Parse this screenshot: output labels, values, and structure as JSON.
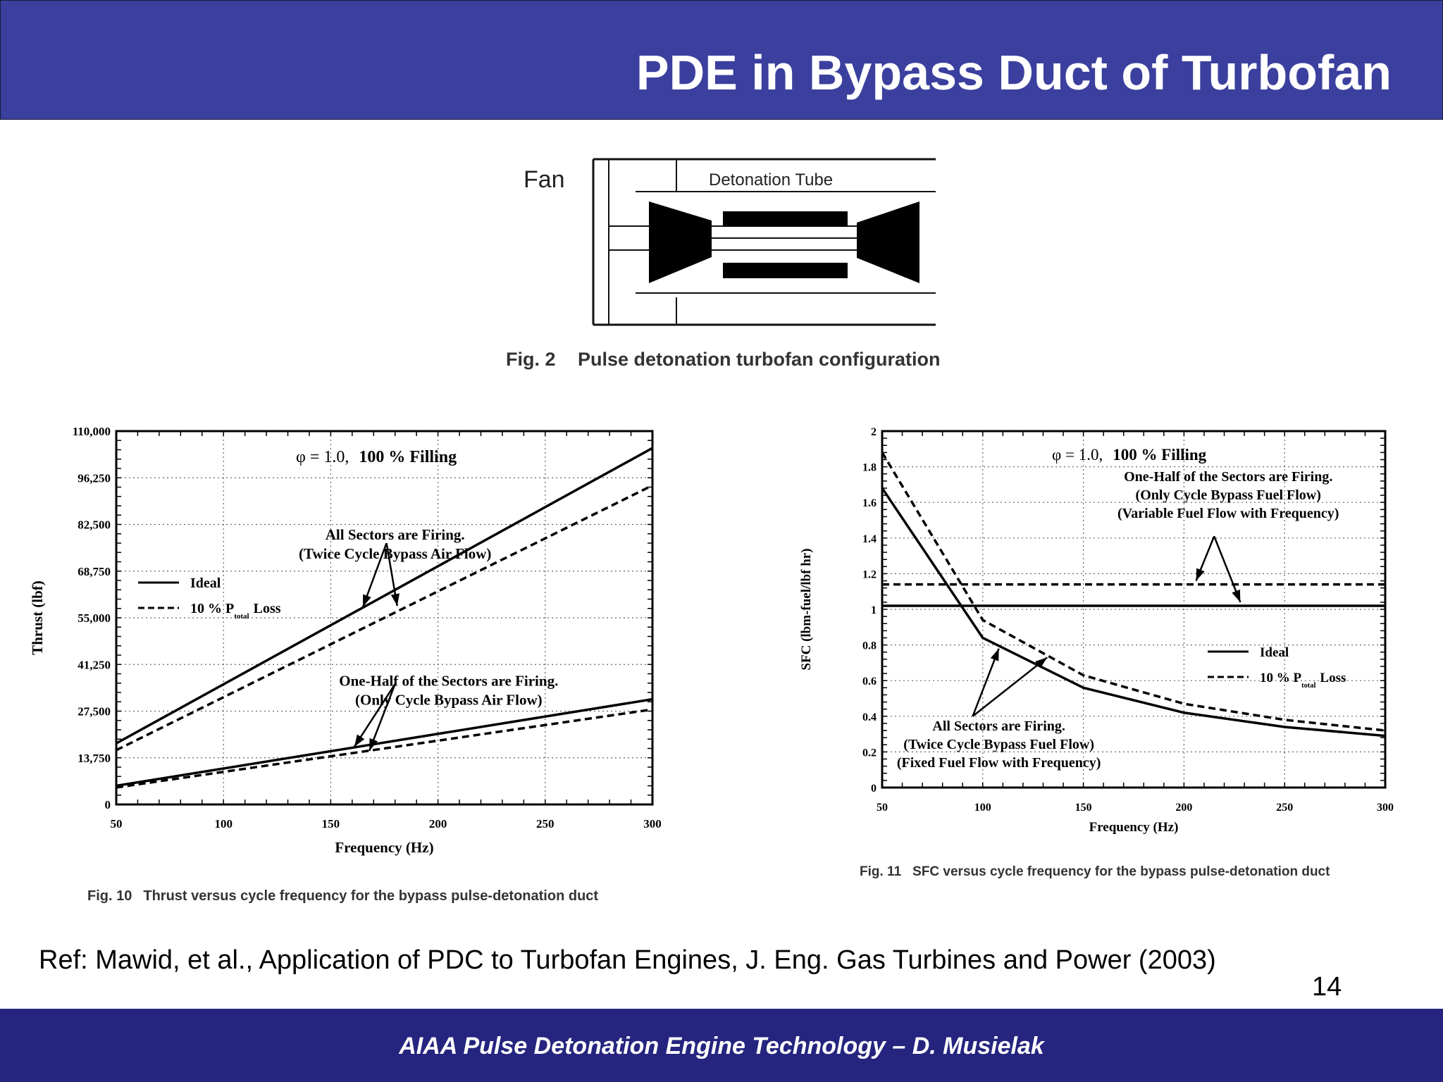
{
  "slide": {
    "title": "PDE in Bypass Duct of Turbofan",
    "reference": "Ref: Mawid, et al., Application of PDC to Turbofan Engines, J. Eng. Gas Turbines and Power (2003)",
    "page_number": "14",
    "footer": "AIAA Pulse Detonation Engine Technology – D. Musielak"
  },
  "diagram": {
    "fan_label": "Fan",
    "tube_label": "Detonation Tube",
    "caption_num": "Fig. 2",
    "caption_text": "Pulse detonation turbofan configuration"
  },
  "chart_data": [
    {
      "type": "line",
      "caption_num": "Fig. 10",
      "caption_text": "Thrust versus cycle frequency for the bypass pulse-detonation duct",
      "xlabel": "Frequency (Hz)",
      "ylabel": "Thrust (lbf)",
      "xlim": [
        50,
        300
      ],
      "ylim": [
        0,
        110000
      ],
      "xticks": [
        50,
        100,
        150,
        200,
        250,
        300
      ],
      "yticks": [
        0,
        13750,
        27500,
        41250,
        55000,
        68750,
        82500,
        96250,
        110000
      ],
      "ytick_labels": [
        "0",
        "13,750",
        "27,500",
        "41,250",
        "55,000",
        "68,750",
        "82,500",
        "96,250",
        "110,000"
      ],
      "grid": true,
      "condition_label": {
        "phi": "φ = 1.0,",
        "filling": "100 % Filling"
      },
      "legend": {
        "placement": "left",
        "ideal": "Ideal",
        "loss_pre": "10 % P",
        "loss_sub": "total",
        "loss_post": "Loss"
      },
      "annotations": [
        {
          "id": "all",
          "lines": [
            "All Sectors are Firing.",
            "(Twice Cycle Bypass Air Flow)"
          ],
          "x": 180,
          "y": 78000
        },
        {
          "id": "half",
          "lines": [
            "One-Half of the Sectors are Firing.",
            "(Only Cycle Bypass Air Flow)"
          ],
          "x": 205,
          "y": 35000
        }
      ],
      "series": [
        {
          "group": "all",
          "style": "solid",
          "x": [
            50,
            300
          ],
          "y": [
            18000,
            105000
          ]
        },
        {
          "group": "all",
          "style": "dashed",
          "x": [
            50,
            300
          ],
          "y": [
            16000,
            94000
          ]
        },
        {
          "group": "half",
          "style": "solid",
          "x": [
            50,
            300
          ],
          "y": [
            5500,
            31000
          ]
        },
        {
          "group": "half",
          "style": "dashed",
          "x": [
            50,
            300
          ],
          "y": [
            5000,
            28000
          ]
        }
      ]
    },
    {
      "type": "line",
      "caption_num": "Fig. 11",
      "caption_text": "SFC versus cycle frequency for the bypass pulse-detonation duct",
      "xlabel": "Frequency (Hz)",
      "ylabel": "SFC (lbm-fuel/lbf hr)",
      "xlim": [
        50,
        300
      ],
      "ylim": [
        0,
        2
      ],
      "xticks": [
        50,
        100,
        150,
        200,
        250,
        300
      ],
      "yticks": [
        0,
        0.2,
        0.4,
        0.6,
        0.8,
        1,
        1.2,
        1.4,
        1.6,
        1.8,
        2
      ],
      "ytick_labels": [
        "0",
        "0.2",
        "0.4",
        "0.6",
        "0.8",
        "1",
        "1.2",
        "1.4",
        "1.6",
        "1.8",
        "2"
      ],
      "grid": true,
      "condition_label": {
        "phi": "φ = 1.0,",
        "filling": "100 % Filling"
      },
      "legend": {
        "placement": "right",
        "ideal": "Ideal",
        "loss_pre": "10 % P",
        "loss_sub": "total",
        "loss_post": "Loss"
      },
      "annotations": [
        {
          "id": "half",
          "lines": [
            "One-Half of the Sectors are Firing.",
            "(Only Cycle Bypass Fuel Flow)",
            "(Variable Fuel Flow with Frequency)"
          ],
          "x": 222,
          "y": 1.72
        },
        {
          "id": "all",
          "lines": [
            "All Sectors are Firing.",
            "(Twice Cycle Bypass Fuel Flow)",
            "(Fixed Fuel Flow with Frequency)"
          ],
          "x": 108,
          "y": 0.32
        }
      ],
      "series": [
        {
          "group": "all",
          "style": "solid",
          "x": [
            50,
            100,
            150,
            200,
            250,
            300
          ],
          "y": [
            1.68,
            0.84,
            0.56,
            0.42,
            0.34,
            0.29
          ]
        },
        {
          "group": "all",
          "style": "dashed",
          "x": [
            50,
            100,
            150,
            200,
            250,
            300
          ],
          "y": [
            1.88,
            0.94,
            0.63,
            0.47,
            0.38,
            0.32
          ]
        },
        {
          "group": "half",
          "style": "solid",
          "x": [
            50,
            300
          ],
          "y": [
            1.02,
            1.02
          ]
        },
        {
          "group": "half",
          "style": "dashed",
          "x": [
            50,
            300
          ],
          "y": [
            1.14,
            1.14
          ]
        }
      ]
    }
  ]
}
